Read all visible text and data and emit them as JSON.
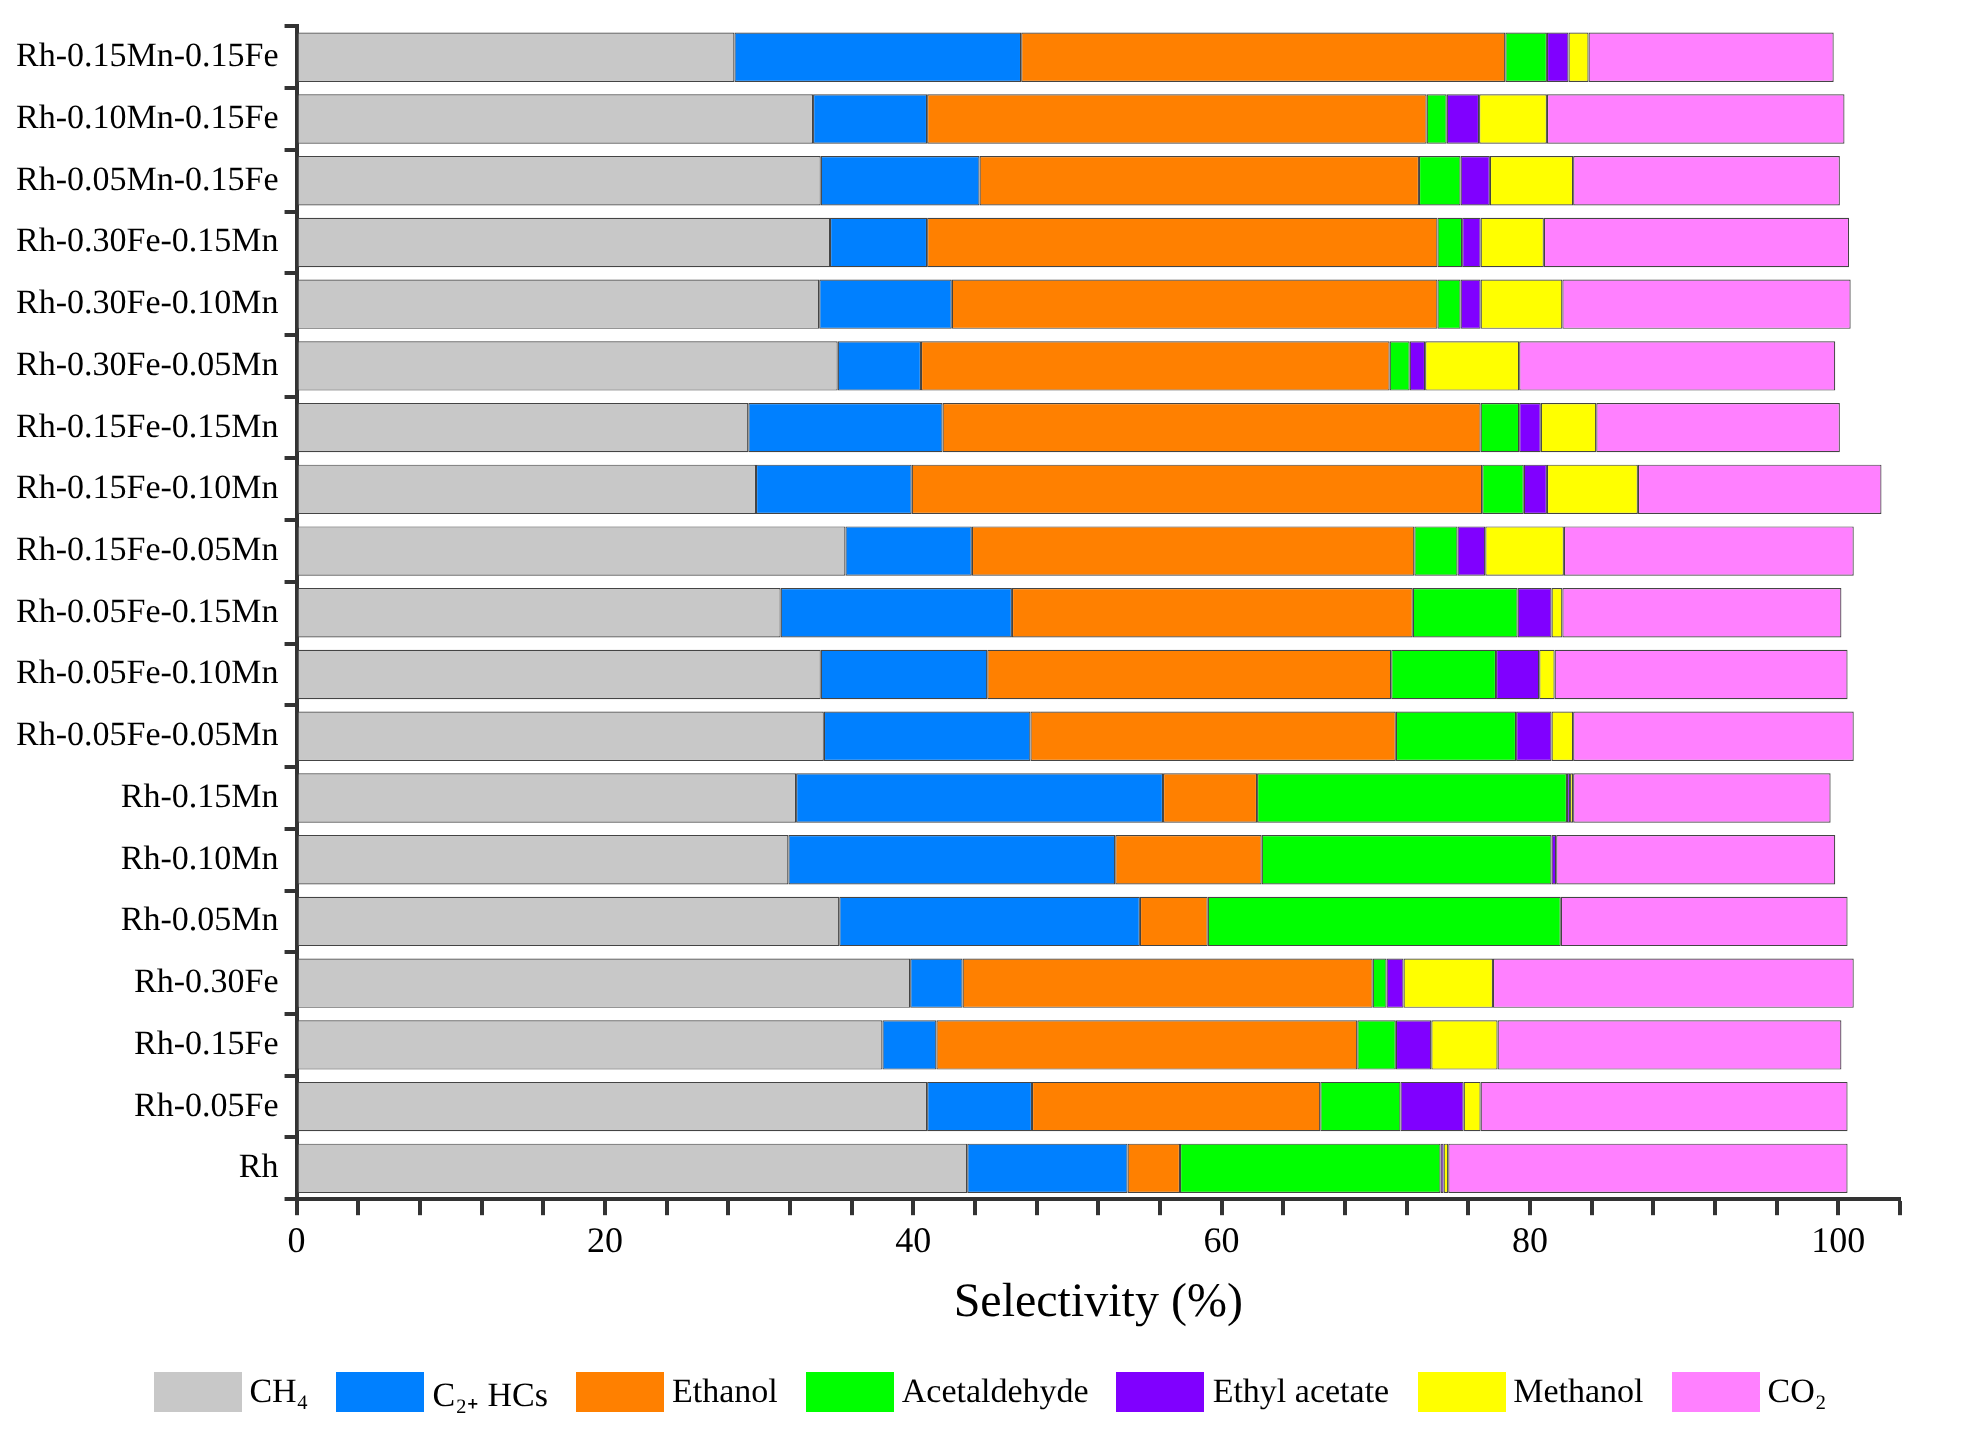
{
  "chart_data": {
    "type": "bar",
    "orientation": "horizontal",
    "stacked": true,
    "xlabel": "Selectivity (%)",
    "legend": "bottom",
    "categories": [
      "Rh-0.15Mn-0.15Fe",
      "Rh-0.10Mn-0.15Fe",
      "Rh-0.05Mn-0.15Fe",
      "Rh-0.30Fe-0.15Mn",
      "Rh-0.30Fe-0.10Mn",
      "Rh-0.30Fe-0.05Mn",
      "Rh-0.15Fe-0.15Mn",
      "Rh-0.15Fe-0.10Mn",
      "Rh-0.15Fe-0.05Mn",
      "Rh-0.05Fe-0.15Mn",
      "Rh-0.05Fe-0.10Mn",
      "Rh-0.05Fe-0.05Mn",
      "Rh-0.15Mn",
      "Rh-0.10Mn",
      "Rh-0.05Mn",
      "Rh-0.30Fe",
      "Rh-0.15Fe",
      "Rh-0.05Fe",
      "Rh"
    ],
    "series": [
      {
        "name": "CH₄",
        "color": "#c8c8c8",
        "values": [
          28.4,
          33.5,
          34.0,
          34.6,
          33.9,
          35.1,
          29.3,
          29.8,
          35.6,
          31.4,
          34.0,
          34.2,
          32.4,
          31.9,
          35.2,
          39.8,
          38.0,
          40.9,
          43.5
        ]
      },
      {
        "name": "C₂₊ HCs",
        "color": "#0080ff",
        "values": [
          18.6,
          7.4,
          10.3,
          6.3,
          8.6,
          5.4,
          12.6,
          10.1,
          8.2,
          15.0,
          10.8,
          13.4,
          23.8,
          21.2,
          19.5,
          3.4,
          3.5,
          6.8,
          10.4
        ]
      },
      {
        "name": "Ethanol",
        "color": "#ff8000",
        "values": [
          31.4,
          32.4,
          28.5,
          33.1,
          31.5,
          30.4,
          34.9,
          37.0,
          28.7,
          26.0,
          26.2,
          23.7,
          6.1,
          9.5,
          4.4,
          26.6,
          27.3,
          18.7,
          3.4
        ]
      },
      {
        "name": "Acetaldehyde",
        "color": "#00ff00",
        "values": [
          2.7,
          1.3,
          2.7,
          1.6,
          1.5,
          1.3,
          2.5,
          2.7,
          2.8,
          6.8,
          6.8,
          7.8,
          20.1,
          18.8,
          22.9,
          0.9,
          2.5,
          5.2,
          16.9
        ]
      },
      {
        "name": "Ethyl acetate",
        "color": "#8000ff",
        "values": [
          1.4,
          2.1,
          1.9,
          1.2,
          1.3,
          1.0,
          1.4,
          1.5,
          1.8,
          2.2,
          2.8,
          2.3,
          0.2,
          0.3,
          0,
          1.1,
          2.3,
          4.1,
          0.2
        ]
      },
      {
        "name": "Methanol",
        "color": "#ffff00",
        "values": [
          1.3,
          4.4,
          5.4,
          4.1,
          5.3,
          6.1,
          3.6,
          5.9,
          5.1,
          0.7,
          1.0,
          1.4,
          0.2,
          0,
          0,
          5.8,
          4.3,
          1.1,
          0.3
        ]
      },
      {
        "name": "CO₂",
        "color": "#ff80ff",
        "values": [
          15.9,
          19.3,
          17.3,
          19.8,
          18.7,
          20.5,
          15.8,
          15.8,
          18.8,
          18.1,
          19.0,
          18.2,
          16.7,
          18.1,
          18.6,
          23.4,
          22.3,
          23.8,
          25.9
        ]
      }
    ],
    "xlim": [
      0,
      104
    ],
    "xticks": [
      0,
      {
        "value": 4,
        "label": null
      },
      {
        "value": 8,
        "label": null
      },
      {
        "value": 12,
        "label": null
      },
      {
        "value": 16,
        "label": null
      },
      20,
      {
        "value": 24,
        "label": null
      },
      {
        "value": 28,
        "label": null
      },
      {
        "value": 32,
        "label": null
      },
      {
        "value": 36,
        "label": null
      },
      40,
      {
        "value": 44,
        "label": null
      },
      {
        "value": 48,
        "label": null
      },
      {
        "value": 52,
        "label": null
      },
      {
        "value": 56,
        "label": null
      },
      60,
      {
        "value": 64,
        "label": null
      },
      {
        "value": 68,
        "label": null
      },
      {
        "value": 72,
        "label": null
      },
      {
        "value": 76,
        "label": null
      },
      80,
      {
        "value": 84,
        "label": null
      },
      {
        "value": 88,
        "label": null
      },
      {
        "value": 92,
        "label": null
      },
      {
        "value": 96,
        "label": null
      },
      100,
      {
        "value": 104,
        "label": null
      }
    ]
  }
}
